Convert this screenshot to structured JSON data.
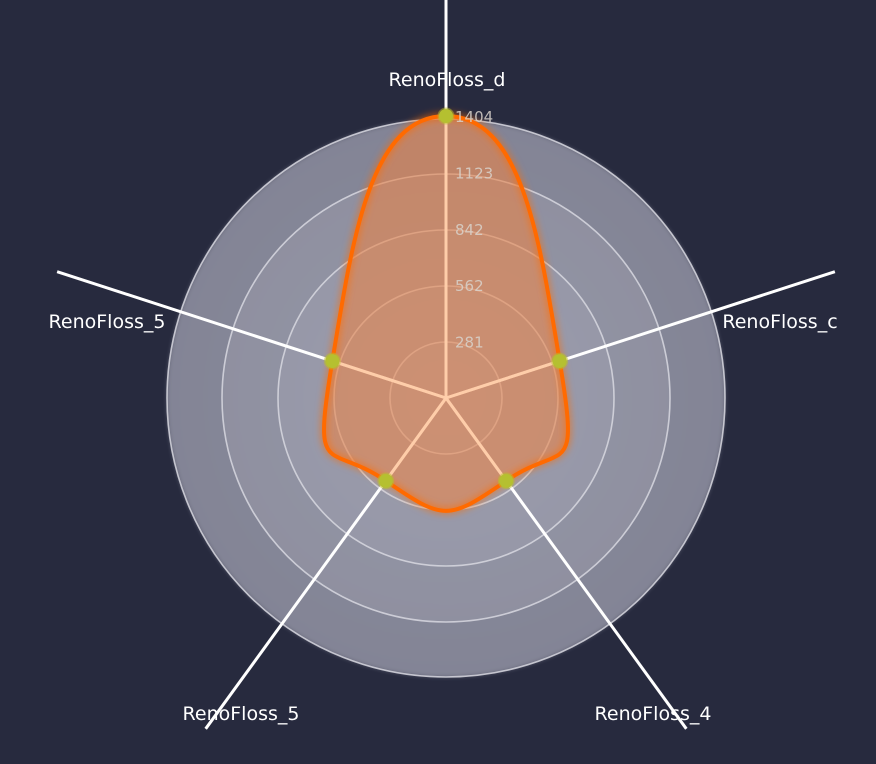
{
  "chart_data": {
    "type": "radar",
    "axes": [
      "RenoFloss_d",
      "RenoFloss_c",
      "RenoFloss_4",
      "RenoFloss_5",
      "RenoFloss_5"
    ],
    "series": [
      {
        "values": [
          1404,
          595,
          510,
          510,
          595
        ]
      }
    ],
    "ticks": [
      281,
      562,
      842,
      1123,
      1404
    ],
    "range": [
      0,
      1404
    ],
    "shape": "smooth",
    "grid": "circles",
    "colors": {
      "background": "#272a3e",
      "series_stroke": "#ff6a00",
      "series_fill": "#e8844a",
      "point": "#b5c030",
      "axis_inner": "#ffcfac",
      "axis_outer": "#ffffff",
      "grid_ring": "#d8d8e0"
    }
  }
}
